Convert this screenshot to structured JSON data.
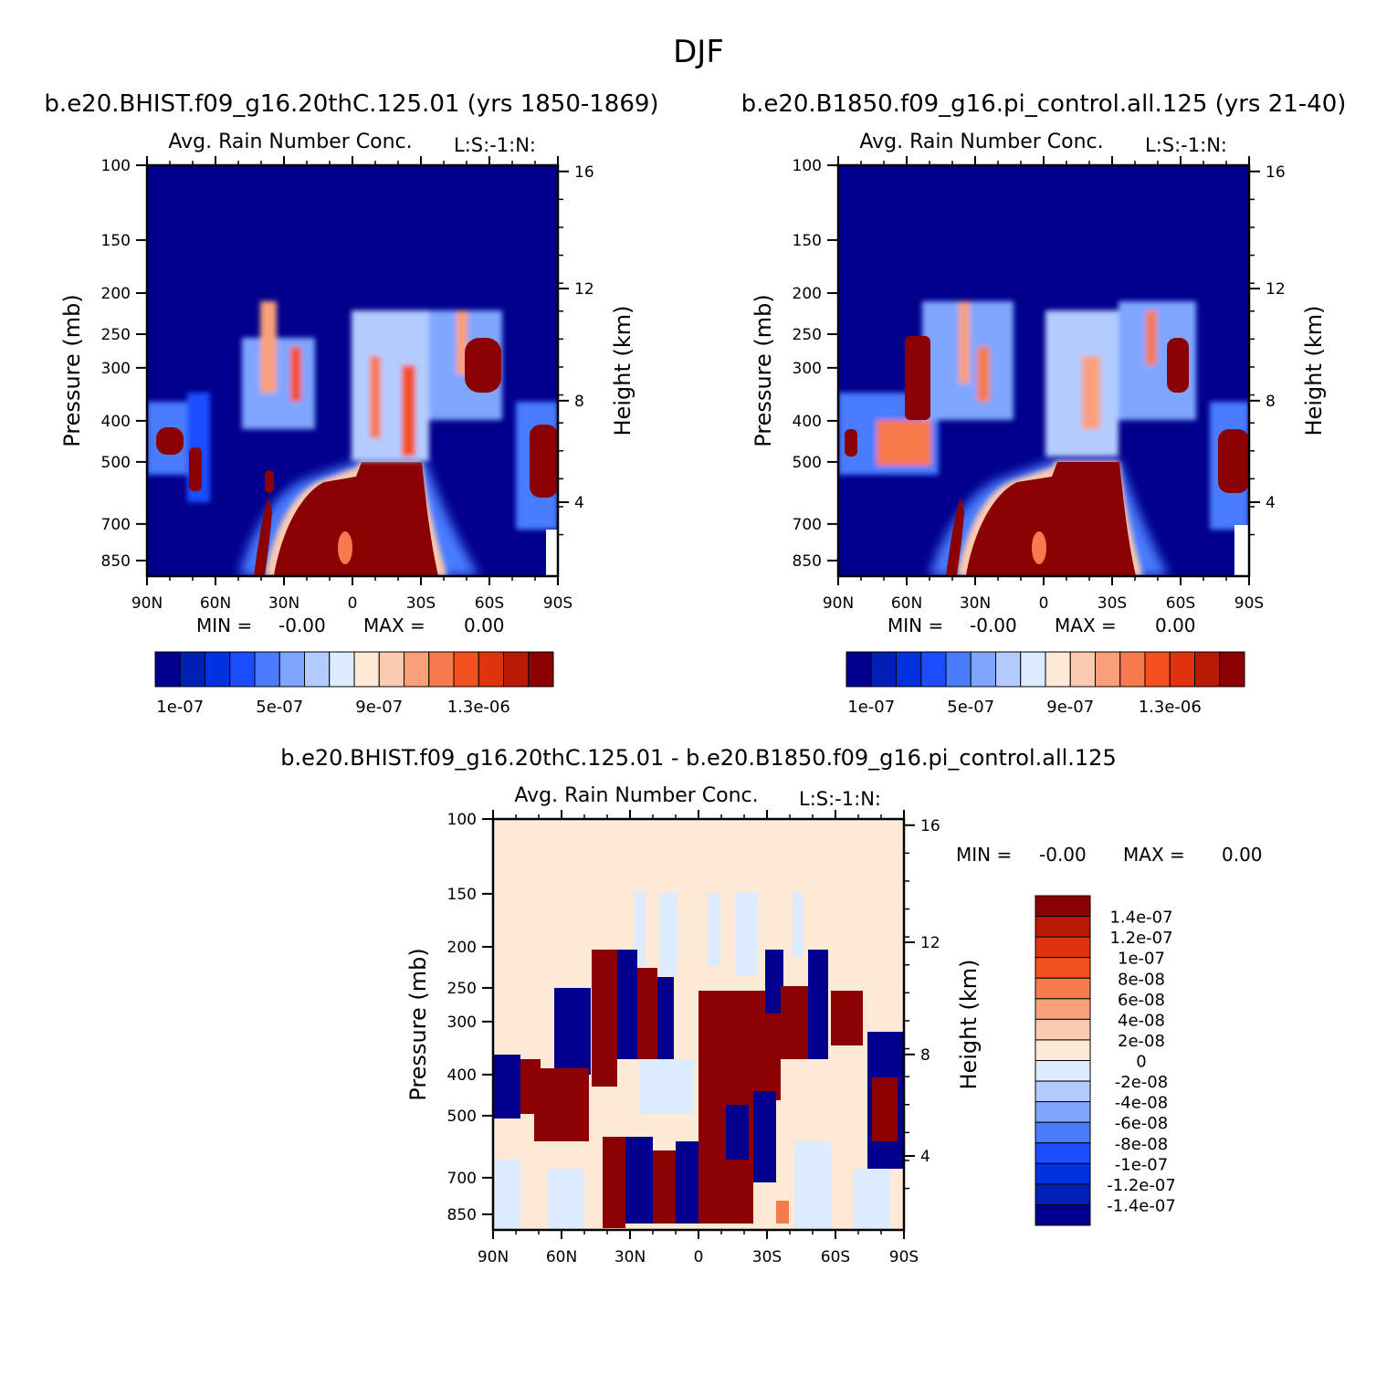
{
  "figure": {
    "season_title": "DJF",
    "case1_header": "b.e20.BHIST.f09_g16.20thC.125.01 (yrs 1850-1869)",
    "case2_header": "b.e20.B1850.f09_g16.pi_control.all.125 (yrs 21-40)",
    "diff_header": "b.e20.BHIST.f09_g16.20thC.125.01 - b.e20.B1850.f09_g16.pi_control.all.125"
  },
  "chart_data": [
    {
      "type": "heatmap",
      "panel": "case1",
      "title": "Avg. Rain Number Conc.",
      "level_tag": "L:S:-1:N:",
      "ylabel": "Pressure (mb)",
      "ylabel_right": "Height (km)",
      "x_ticks": [
        "90N",
        "60N",
        "30N",
        "0",
        "30S",
        "60S",
        "90S"
      ],
      "y_ticks": [
        "100",
        "150",
        "200",
        "250",
        "300",
        "400",
        "500",
        "700",
        "850"
      ],
      "y_right_ticks": [
        "16",
        "12",
        "8",
        "4"
      ],
      "min_label": "MIN =",
      "min_value": "-0.00",
      "max_label": "MAX =",
      "max_value": "0.00",
      "colorbar_labels": [
        "1e-07",
        "5e-07",
        "9e-07",
        "1.3e-06"
      ],
      "colors": [
        "#00008c",
        "#0020b4",
        "#0033dd",
        "#1b4dff",
        "#4a7bff",
        "#7fa6ff",
        "#b3ccff",
        "#dcebff",
        "#fde9d6",
        "#fccab0",
        "#f9a07a",
        "#f77a4c",
        "#f5501f",
        "#e0320c",
        "#b81a05",
        "#8b0000"
      ]
    },
    {
      "type": "heatmap",
      "panel": "case2",
      "title": "Avg. Rain Number Conc.",
      "level_tag": "L:S:-1:N:",
      "ylabel": "Pressure (mb)",
      "ylabel_right": "Height (km)",
      "x_ticks": [
        "90N",
        "60N",
        "30N",
        "0",
        "30S",
        "60S",
        "90S"
      ],
      "y_ticks": [
        "100",
        "150",
        "200",
        "250",
        "300",
        "400",
        "500",
        "700",
        "850"
      ],
      "y_right_ticks": [
        "16",
        "12",
        "8",
        "4"
      ],
      "min_label": "MIN =",
      "min_value": "-0.00",
      "max_label": "MAX =",
      "max_value": "0.00",
      "colorbar_labels": [
        "1e-07",
        "5e-07",
        "9e-07",
        "1.3e-06"
      ],
      "colors": [
        "#00008c",
        "#0020b4",
        "#0033dd",
        "#1b4dff",
        "#4a7bff",
        "#7fa6ff",
        "#b3ccff",
        "#dcebff",
        "#fde9d6",
        "#fccab0",
        "#f9a07a",
        "#f77a4c",
        "#f5501f",
        "#e0320c",
        "#b81a05",
        "#8b0000"
      ]
    },
    {
      "type": "heatmap",
      "panel": "difference",
      "title": "Avg. Rain Number Conc.",
      "level_tag": "L:S:-1:N:",
      "ylabel": "Pressure (mb)",
      "ylabel_right": "Height (km)",
      "x_ticks": [
        "90N",
        "60N",
        "30N",
        "0",
        "30S",
        "60S",
        "90S"
      ],
      "y_ticks": [
        "100",
        "150",
        "200",
        "250",
        "300",
        "400",
        "500",
        "700",
        "850"
      ],
      "y_right_ticks": [
        "16",
        "12",
        "8",
        "4"
      ],
      "min_label": "MIN =",
      "min_value": "-0.00",
      "max_label": "MAX =",
      "max_value": "0.00",
      "colorbar_labels": [
        "1.4e-07",
        "1.2e-07",
        "1e-07",
        "8e-08",
        "6e-08",
        "4e-08",
        "2e-08",
        "0",
        "-2e-08",
        "-4e-08",
        "-6e-08",
        "-8e-08",
        "-1e-07",
        "-1.2e-07",
        "-1.4e-07"
      ],
      "colors": [
        "#8b0000",
        "#b81a05",
        "#e0320c",
        "#f5501f",
        "#f77a4c",
        "#f9a07a",
        "#fccab0",
        "#fde9d6",
        "#dcebff",
        "#b3ccff",
        "#7fa6ff",
        "#4a7bff",
        "#1b4dff",
        "#0033dd",
        "#0020b4",
        "#00008c"
      ]
    }
  ]
}
